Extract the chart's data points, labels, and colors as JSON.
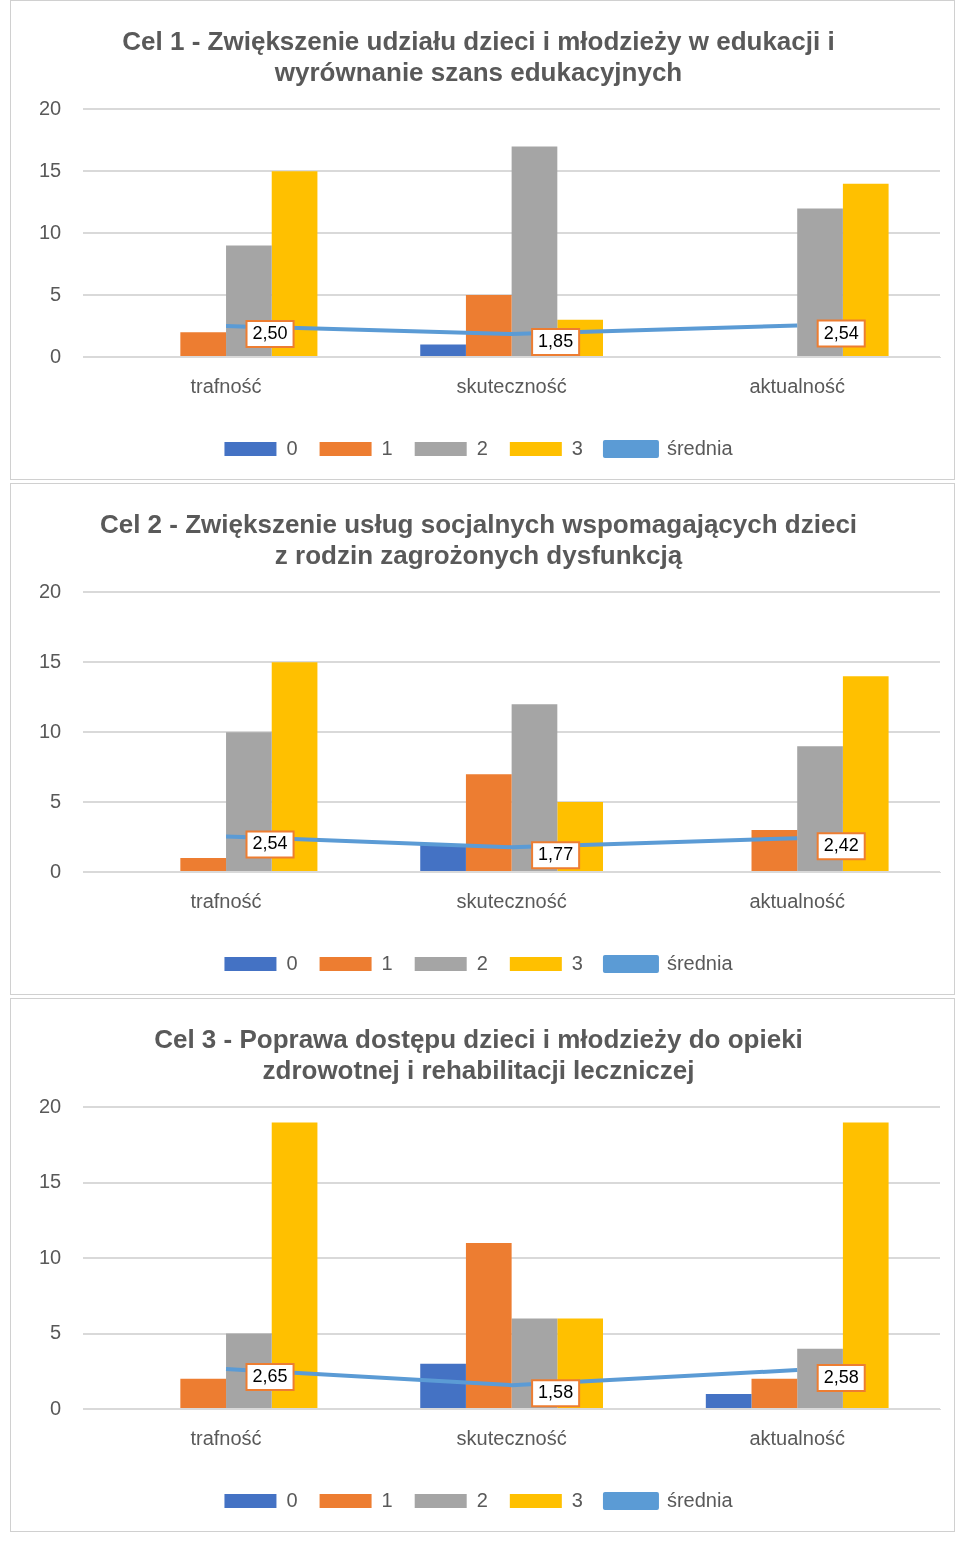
{
  "chart_data": [
    {
      "type": "bar",
      "title": "Cel 1 - Zwiększenie udziału dzieci i młodzieży w edukacji i wyrównanie szans edukacyjnych",
      "categories": [
        "trafność",
        "skuteczność",
        "aktualność"
      ],
      "series": [
        {
          "name": "0",
          "color": "#4472c4",
          "values": [
            0,
            1,
            0
          ]
        },
        {
          "name": "1",
          "color": "#ed7d31",
          "values": [
            2,
            5,
            0
          ]
        },
        {
          "name": "2",
          "color": "#a5a5a5",
          "values": [
            9,
            17,
            12
          ]
        },
        {
          "name": "3",
          "color": "#ffc000",
          "values": [
            15,
            3,
            14
          ]
        },
        {
          "name": "średnia",
          "type": "line",
          "color": "#5b9bd5",
          "values": [
            2.5,
            1.85,
            2.54
          ],
          "value_labels": [
            "2,50",
            "1,85",
            "2,54"
          ]
        }
      ],
      "ylim": [
        0,
        20
      ],
      "yticks": [
        0,
        5,
        10,
        15,
        20
      ],
      "grid": "y",
      "legend": "bottom",
      "marker": "none"
    },
    {
      "type": "bar",
      "title": "Cel 2 - Zwiększenie usług socjalnych wspomagających dzieci z rodzin zagrożonych dysfunkcją",
      "categories": [
        "trafność",
        "skuteczność",
        "aktualność"
      ],
      "series": [
        {
          "name": "0",
          "color": "#4472c4",
          "values": [
            0,
            2,
            0
          ]
        },
        {
          "name": "1",
          "color": "#ed7d31",
          "values": [
            1,
            7,
            3
          ]
        },
        {
          "name": "2",
          "color": "#a5a5a5",
          "values": [
            10,
            12,
            9
          ]
        },
        {
          "name": "3",
          "color": "#ffc000",
          "values": [
            15,
            5,
            14
          ]
        },
        {
          "name": "średnia",
          "type": "line",
          "color": "#5b9bd5",
          "values": [
            2.54,
            1.77,
            2.42
          ],
          "value_labels": [
            "2,54",
            "1,77",
            "2,42"
          ]
        }
      ],
      "ylim": [
        0,
        20
      ],
      "yticks": [
        0,
        5,
        10,
        15,
        20
      ],
      "grid": "y",
      "legend": "bottom",
      "marker": "none"
    },
    {
      "type": "bar",
      "title": "Cel 3 - Poprawa dostępu dzieci i młodzieży do opieki zdrowotnej i rehabilitacji leczniczej",
      "categories": [
        "trafność",
        "skuteczność",
        "aktualność"
      ],
      "series": [
        {
          "name": "0",
          "color": "#4472c4",
          "values": [
            0,
            3,
            1
          ]
        },
        {
          "name": "1",
          "color": "#ed7d31",
          "values": [
            2,
            11,
            2
          ]
        },
        {
          "name": "2",
          "color": "#a5a5a5",
          "values": [
            5,
            6,
            4
          ]
        },
        {
          "name": "3",
          "color": "#ffc000",
          "values": [
            19,
            6,
            19
          ]
        },
        {
          "name": "średnia",
          "type": "line",
          "color": "#5b9bd5",
          "values": [
            2.65,
            1.58,
            2.58
          ],
          "value_labels": [
            "2,65",
            "1,58",
            "2,58"
          ]
        }
      ],
      "ylim": [
        0,
        20
      ],
      "yticks": [
        0,
        5,
        10,
        15,
        20
      ],
      "grid": "y",
      "legend": "bottom",
      "marker": "none"
    }
  ]
}
